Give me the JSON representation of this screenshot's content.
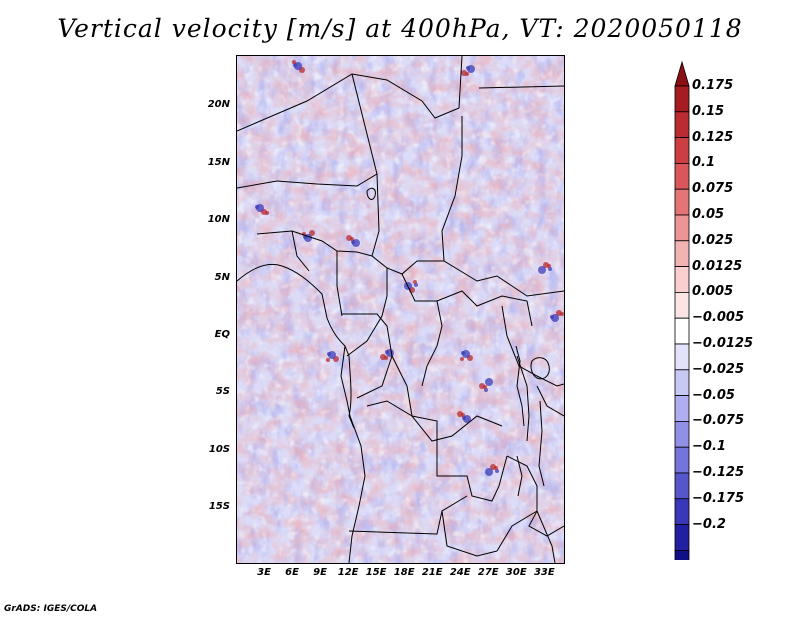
{
  "title": "Vertical velocity [m/s] at 400hPa, VT: 2020050118",
  "credit": "GrADS: IGES/COLA",
  "map": {
    "variable": "Vertical velocity",
    "units": "m/s",
    "level": "400hPa",
    "valid_time": "2020050118",
    "lat_labels": [
      "20N",
      "15N",
      "10N",
      "5N",
      "EQ",
      "5S",
      "10S",
      "15S"
    ],
    "lon_labels": [
      "3E",
      "6E",
      "9E",
      "12E",
      "15E",
      "18E",
      "21E",
      "24E",
      "27E",
      "30E",
      "33E"
    ],
    "lat_range": [
      -20,
      25
    ],
    "lon_range": [
      0,
      35
    ]
  },
  "colorbar": {
    "labels": [
      "0.175",
      "0.15",
      "0.125",
      "0.1",
      "0.075",
      "0.05",
      "0.025",
      "0.0125",
      "0.005",
      "−0.005",
      "−0.0125",
      "−0.025",
      "−0.05",
      "−0.075",
      "−0.1",
      "−0.125",
      "−0.175",
      "−0.2"
    ],
    "colors": [
      "#a51d22",
      "#bb2b30",
      "#cc3e42",
      "#d9575a",
      "#e47577",
      "#ed9495",
      "#f4b3b3",
      "#f9cfcf",
      "#fbe4e4",
      "#ffffff",
      "#e2e2fa",
      "#c8c8f5",
      "#aeaef0",
      "#9090e6",
      "#7474dc",
      "#5656cc",
      "#3838b8",
      "#2020a0",
      "#0f0f88"
    ],
    "top_arrow_color": "#8b1015",
    "bottom_arrow_color": "#1a0a8a"
  }
}
